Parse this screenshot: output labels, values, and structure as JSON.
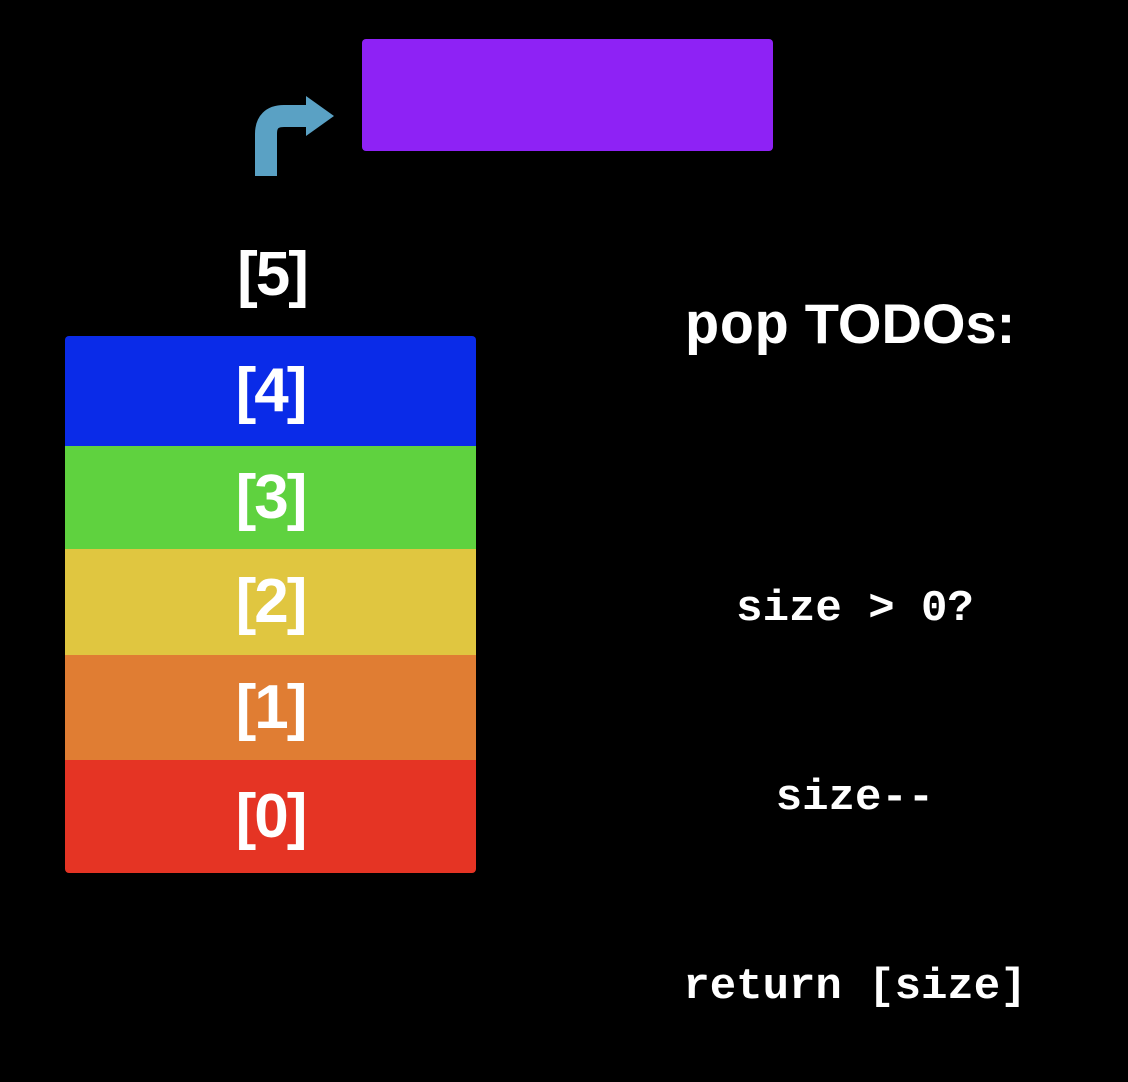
{
  "popped_block": {
    "color": "#8e22f5"
  },
  "arrow": {
    "icon": "curved-arrow-up-right",
    "color": "#5aa1c4"
  },
  "top_index_label": "[5]",
  "stack": [
    {
      "label": "[4]",
      "color": "#0a2be8"
    },
    {
      "label": "[3]",
      "color": "#5fd23f"
    },
    {
      "label": "[2]",
      "color": "#e0c640"
    },
    {
      "label": "[1]",
      "color": "#e07d33"
    },
    {
      "label": "[0]",
      "color": "#e53424"
    }
  ],
  "todos": {
    "title_prefix": "pop",
    "title_suffix": "TODOs:",
    "lines": [
      "size > 0?",
      "size--",
      "return [size]"
    ]
  }
}
